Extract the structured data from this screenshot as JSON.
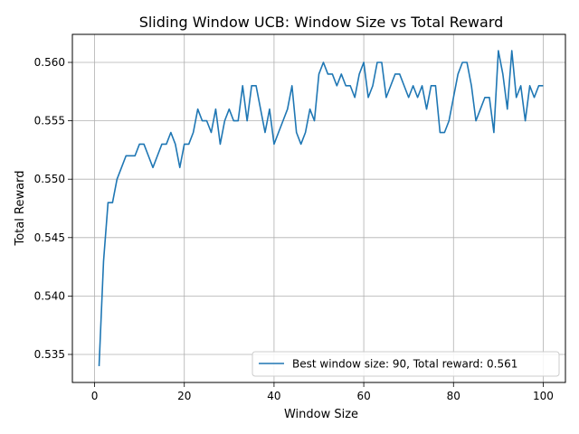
{
  "chart_data": {
    "type": "line",
    "title": "Sliding Window UCB: Window Size vs Total Reward",
    "xlabel": "Window Size",
    "ylabel": "Total Reward",
    "xlim": [
      -4.95,
      104.95
    ],
    "ylim": [
      0.5326,
      0.5624
    ],
    "xticks": [
      0,
      20,
      40,
      60,
      80,
      100
    ],
    "yticks": [
      0.535,
      0.54,
      0.545,
      0.55,
      0.555,
      0.56
    ],
    "ytick_labels": [
      "0.535",
      "0.540",
      "0.545",
      "0.550",
      "0.555",
      "0.560"
    ],
    "grid": true,
    "legend_position": "lower-right",
    "colors": {
      "line": "#1f77b4",
      "grid": "#b0b0b0"
    },
    "series": [
      {
        "name": "Best window size: 90, Total reward: 0.561",
        "x": [
          1,
          2,
          3,
          4,
          5,
          6,
          7,
          8,
          9,
          10,
          11,
          12,
          13,
          14,
          15,
          16,
          17,
          18,
          19,
          20,
          21,
          22,
          23,
          24,
          25,
          26,
          27,
          28,
          29,
          30,
          31,
          32,
          33,
          34,
          35,
          36,
          37,
          38,
          39,
          40,
          41,
          42,
          43,
          44,
          45,
          46,
          47,
          48,
          49,
          50,
          51,
          52,
          53,
          54,
          55,
          56,
          57,
          58,
          59,
          60,
          61,
          62,
          63,
          64,
          65,
          66,
          67,
          68,
          69,
          70,
          71,
          72,
          73,
          74,
          75,
          76,
          77,
          78,
          79,
          80,
          81,
          82,
          83,
          84,
          85,
          86,
          87,
          88,
          89,
          90,
          91,
          92,
          93,
          94,
          95,
          96,
          97,
          98,
          99,
          100
        ],
        "values": [
          0.534,
          0.543,
          0.548,
          0.548,
          0.55,
          0.551,
          0.552,
          0.552,
          0.552,
          0.553,
          0.553,
          0.552,
          0.551,
          0.552,
          0.553,
          0.553,
          0.554,
          0.553,
          0.551,
          0.553,
          0.553,
          0.554,
          0.556,
          0.555,
          0.555,
          0.554,
          0.556,
          0.553,
          0.555,
          0.556,
          0.555,
          0.555,
          0.558,
          0.555,
          0.558,
          0.558,
          0.556,
          0.554,
          0.556,
          0.553,
          0.554,
          0.555,
          0.556,
          0.558,
          0.554,
          0.553,
          0.554,
          0.556,
          0.555,
          0.559,
          0.56,
          0.559,
          0.559,
          0.558,
          0.559,
          0.558,
          0.558,
          0.557,
          0.559,
          0.56,
          0.557,
          0.558,
          0.56,
          0.56,
          0.557,
          0.558,
          0.559,
          0.559,
          0.558,
          0.557,
          0.558,
          0.557,
          0.558,
          0.556,
          0.558,
          0.558,
          0.554,
          0.554,
          0.555,
          0.557,
          0.559,
          0.56,
          0.56,
          0.558,
          0.555,
          0.556,
          0.557,
          0.557,
          0.554,
          0.561,
          0.559,
          0.556,
          0.561,
          0.557,
          0.558,
          0.555,
          0.558,
          0.557,
          0.558,
          0.558
        ]
      }
    ]
  }
}
